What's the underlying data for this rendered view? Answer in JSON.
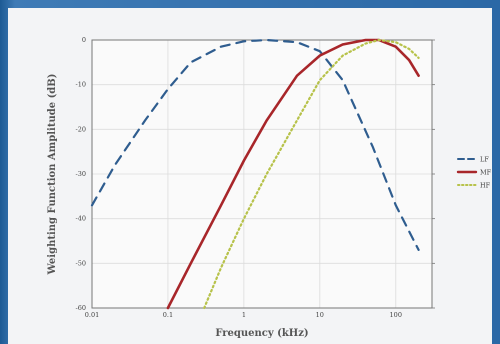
{
  "chart_data": {
    "type": "line",
    "title": "",
    "xlabel": "Frequency (kHz)",
    "ylabel": "Weighting Function Amplitude (dB)",
    "x_scale": "log",
    "xlim": [
      0.01,
      300
    ],
    "ylim": [
      -60,
      0
    ],
    "x_ticks": [
      0.01,
      0.1,
      1,
      10,
      100
    ],
    "x_tick_labels": [
      "0.01",
      "0.1",
      "1",
      "10",
      "100"
    ],
    "y_ticks": [
      0,
      -10,
      -20,
      -30,
      -40,
      -50,
      -60
    ],
    "y_tick_labels": [
      "0",
      "-10",
      "-20",
      "-30",
      "-40",
      "-50",
      "-60"
    ],
    "grid": true,
    "legend_position": "right",
    "series": [
      {
        "name": "LF",
        "color": "#2f5d8f",
        "style": "dashed",
        "points": [
          [
            0.01,
            -37
          ],
          [
            0.02,
            -28
          ],
          [
            0.05,
            -18
          ],
          [
            0.1,
            -11
          ],
          [
            0.2,
            -5
          ],
          [
            0.5,
            -1.5
          ],
          [
            1,
            -0.3
          ],
          [
            2,
            0
          ],
          [
            5,
            -0.5
          ],
          [
            10,
            -2.5
          ],
          [
            20,
            -9
          ],
          [
            50,
            -24
          ],
          [
            100,
            -37
          ],
          [
            200,
            -47
          ]
        ]
      },
      {
        "name": "MF",
        "color": "#a8262a",
        "style": "solid",
        "points": [
          [
            0.1,
            -60
          ],
          [
            0.2,
            -50
          ],
          [
            0.5,
            -37
          ],
          [
            1,
            -27
          ],
          [
            2,
            -18
          ],
          [
            5,
            -8
          ],
          [
            10,
            -3.5
          ],
          [
            20,
            -1
          ],
          [
            40,
            0
          ],
          [
            60,
            0
          ],
          [
            100,
            -1.5
          ],
          [
            150,
            -4.5
          ],
          [
            200,
            -8
          ]
        ]
      },
      {
        "name": "HF",
        "color": "#b7c24a",
        "style": "dotted",
        "points": [
          [
            0.3,
            -60
          ],
          [
            0.5,
            -51
          ],
          [
            1,
            -40
          ],
          [
            2,
            -30
          ],
          [
            5,
            -18
          ],
          [
            10,
            -9
          ],
          [
            20,
            -3.5
          ],
          [
            40,
            -0.8
          ],
          [
            60,
            0
          ],
          [
            100,
            -0.5
          ],
          [
            150,
            -2
          ],
          [
            200,
            -4
          ]
        ]
      }
    ]
  }
}
